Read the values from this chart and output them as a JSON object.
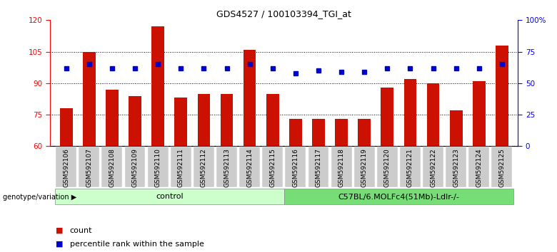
{
  "title": "GDS4527 / 100103394_TGI_at",
  "samples": [
    "GSM592106",
    "GSM592107",
    "GSM592108",
    "GSM592109",
    "GSM592110",
    "GSM592111",
    "GSM592112",
    "GSM592113",
    "GSM592114",
    "GSM592115",
    "GSM592116",
    "GSM592117",
    "GSM592118",
    "GSM592119",
    "GSM592120",
    "GSM592121",
    "GSM592122",
    "GSM592123",
    "GSM592124",
    "GSM592125"
  ],
  "counts": [
    78,
    105,
    87,
    84,
    117,
    83,
    85,
    85,
    106,
    85,
    73,
    73,
    73,
    73,
    88,
    92,
    90,
    77,
    91,
    108
  ],
  "percentile": [
    62,
    65,
    62,
    62,
    65,
    62,
    62,
    62,
    65,
    62,
    58,
    60,
    59,
    59,
    62,
    62,
    62,
    62,
    62,
    65
  ],
  "group1_label": "control",
  "group2_label": "C57BL/6.MOLFc4(51Mb)-Ldlr-/-",
  "group1_count": 10,
  "ylim_left": [
    60,
    120
  ],
  "ylim_right": [
    0,
    100
  ],
  "yticks_left": [
    60,
    75,
    90,
    105,
    120
  ],
  "yticks_right": [
    0,
    25,
    50,
    75,
    100
  ],
  "bar_color": "#cc1100",
  "dot_color": "#0000cc",
  "bg_color": "#ffffff",
  "group1_bg": "#ccffcc",
  "group2_bg": "#77dd77",
  "xtick_bg": "#cccccc",
  "genotype_label": "genotype/variation",
  "legend_count": "count",
  "legend_pct": "percentile rank within the sample"
}
